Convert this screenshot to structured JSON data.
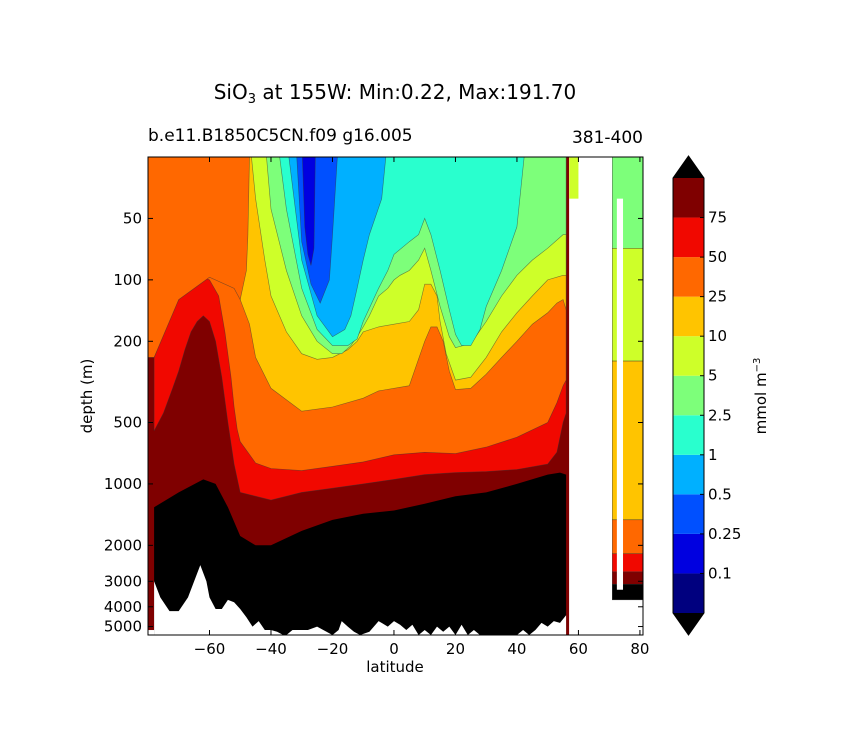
{
  "chart_data": {
    "type": "heatmap",
    "title_prefix": "SiO",
    "title_subscript": "3",
    "title_suffix": " at 155W: Min:0.22, Max:191.70",
    "subtitle_left": "b.e11.B1850C5CN.f09 g16.005",
    "subtitle_right": "381-400",
    "xlabel": "latitude",
    "ylabel": "depth (m)",
    "xlim": [
      -80,
      81
    ],
    "ylim_depth_m": [
      5500,
      25
    ],
    "yscale": "log",
    "x_ticks": [
      "−60",
      "−40",
      "−20",
      "0",
      "20",
      "40",
      "60",
      "80"
    ],
    "x_tick_values": [
      -60,
      -40,
      -20,
      0,
      20,
      40,
      60,
      80
    ],
    "y_ticks": [
      "50",
      "100",
      "200",
      "500",
      "1000",
      "2000",
      "3000",
      "4000",
      "5000"
    ],
    "y_tick_values": [
      50,
      100,
      200,
      500,
      1000,
      2000,
      3000,
      4000,
      5000
    ],
    "colorbar_label": "mmol m",
    "colorbar_label_exp": "−3",
    "colorbar_levels": [
      "0.1",
      "0.25",
      "0.5",
      "1",
      "2.5",
      "5",
      "10",
      "25",
      "50",
      "75"
    ],
    "colorbar_colors": [
      "#00007f",
      "#0000e0",
      "#0050ff",
      "#00b0ff",
      "#29ffce",
      "#7dff7a",
      "#ceff29",
      "#ffc400",
      "#ff6800",
      "#f10800",
      "#7f0000"
    ],
    "extend": "both",
    "land_color": "#000000",
    "series": [
      {
        "name": "contour 75 depth (m)",
        "lat": [
          -78,
          -75,
          -72,
          -70,
          -68,
          -66,
          -64,
          -62,
          -60,
          -58,
          -56,
          -54,
          -52,
          -50,
          -40,
          -30,
          -20,
          -10,
          0,
          10,
          20,
          30,
          40,
          50,
          53,
          55,
          56
        ],
        "depth": [
          550,
          450,
          340,
          280,
          220,
          180,
          160,
          150,
          160,
          200,
          300,
          500,
          800,
          1100,
          1200,
          1100,
          1050,
          1000,
          950,
          900,
          880,
          870,
          850,
          800,
          700,
          500,
          450
        ]
      },
      {
        "name": "contour 50 depth (m)",
        "lat": [
          -78,
          -75,
          -72,
          -70,
          -67,
          -65,
          -62,
          -60,
          -57,
          -55,
          -53,
          -52,
          -51,
          -50,
          -45,
          -40,
          -30,
          -20,
          -10,
          0,
          10,
          20,
          30,
          40,
          50,
          53,
          55,
          56
        ],
        "depth": [
          240,
          180,
          140,
          125,
          110,
          100,
          97,
          100,
          120,
          180,
          300,
          420,
          540,
          620,
          790,
          840,
          860,
          820,
          780,
          720,
          700,
          710,
          660,
          590,
          500,
          400,
          330,
          310
        ]
      },
      {
        "name": "contour 25 depth (m)",
        "lat": [
          -50,
          -47,
          -45,
          -40,
          -30,
          -20,
          -10,
          -5,
          5,
          10,
          12,
          14,
          16,
          18,
          20,
          25,
          30,
          35,
          40,
          45,
          50,
          53,
          55,
          56
        ],
        "depth": [
          125,
          165,
          240,
          340,
          440,
          420,
          380,
          350,
          330,
          200,
          170,
          170,
          200,
          280,
          345,
          340,
          290,
          240,
          200,
          165,
          145,
          130,
          125,
          140
        ]
      },
      {
        "name": "contour 10 depth (m)",
        "lat": [
          -47,
          -45,
          -42,
          -40,
          -35,
          -30,
          -25,
          -20,
          -15,
          -12,
          -10,
          -5,
          0,
          5,
          8,
          10,
          12,
          14,
          15,
          17,
          20,
          25,
          30,
          35,
          40,
          45,
          50,
          55,
          56
        ],
        "depth": [
          20,
          40,
          80,
          120,
          180,
          230,
          245,
          240,
          220,
          200,
          180,
          170,
          165,
          160,
          140,
          105,
          105,
          120,
          160,
          230,
          310,
          300,
          240,
          180,
          145,
          120,
          100,
          95,
          95
        ]
      },
      {
        "name": "contour 5 depth (m)",
        "lat": [
          -42,
          -40,
          -35,
          -30,
          -25,
          -20,
          -17,
          -14,
          -12,
          -10,
          -8,
          -5,
          -2,
          0,
          2,
          5,
          8,
          10,
          12,
          15,
          18,
          20,
          25,
          30,
          35,
          40,
          45,
          50,
          55,
          56
        ],
        "depth": [
          20,
          45,
          90,
          150,
          200,
          230,
          230,
          210,
          190,
          170,
          150,
          120,
          110,
          100,
          95,
          90,
          80,
          70,
          90,
          135,
          190,
          215,
          205,
          160,
          120,
          95,
          80,
          70,
          60,
          60
        ]
      },
      {
        "name": "contour 2.5 depth (m)",
        "lat": [
          -38,
          -35,
          -30,
          -25,
          -20,
          -15,
          -12,
          -10,
          -5,
          -2,
          0,
          5,
          8,
          10,
          12,
          15,
          18,
          20,
          22,
          25,
          28,
          30,
          35,
          40,
          43
        ],
        "depth": [
          20,
          45,
          110,
          175,
          210,
          210,
          195,
          160,
          110,
          90,
          75,
          65,
          60,
          50,
          60,
          90,
          140,
          185,
          210,
          210,
          175,
          135,
          90,
          55,
          20
        ]
      },
      {
        "name": "contour 1 depth (m)",
        "lat": [
          -35,
          -30,
          -25,
          -20,
          -16,
          -14,
          -12,
          -10,
          -8,
          -4,
          -2
        ],
        "depth": [
          20,
          80,
          150,
          190,
          175,
          150,
          110,
          80,
          60,
          40,
          20
        ]
      },
      {
        "name": "contour 0.5 depth (m)",
        "lat": [
          -32,
          -30,
          -27,
          -24,
          -21,
          -20,
          -19,
          -18
        ],
        "depth": [
          20,
          65,
          105,
          130,
          100,
          60,
          35,
          20
        ]
      },
      {
        "name": "contour 0.25 depth (m)",
        "lat": [
          -30,
          -29,
          -28,
          -27,
          -26,
          -25.5
        ],
        "depth": [
          20,
          55,
          75,
          85,
          70,
          20
        ]
      },
      {
        "name": "seafloor depth (m)",
        "lat": [
          -78,
          -76,
          -73,
          -70,
          -67,
          -63,
          -61,
          -60,
          -58,
          -56,
          -54,
          -52,
          -50,
          -48,
          -46,
          -44,
          -42,
          -40,
          -38,
          -36,
          -35,
          -33,
          -30,
          -28,
          -25,
          -20,
          -18,
          -17,
          -15,
          -13,
          -11,
          -8,
          -5,
          -2,
          0,
          2,
          4,
          6,
          8,
          10,
          12,
          14,
          16,
          18,
          20,
          22,
          24,
          26,
          28,
          30,
          32,
          34,
          36,
          38,
          40,
          42,
          44,
          46,
          48,
          50,
          52,
          54,
          56
        ],
        "depth": [
          3000,
          3600,
          4200,
          4200,
          3600,
          2500,
          3000,
          3600,
          4100,
          4100,
          3700,
          3800,
          4100,
          4500,
          5000,
          4700,
          5200,
          5200,
          5300,
          5500,
          5500,
          5200,
          5200,
          5200,
          5000,
          5500,
          5200,
          4700,
          5000,
          5300,
          5500,
          5300,
          4700,
          5000,
          4700,
          4900,
          5200,
          4900,
          5500,
          5200,
          5500,
          5000,
          5300,
          5000,
          5500,
          4900,
          5500,
          5200,
          5500,
          5500,
          5500,
          5500,
          5500,
          5500,
          5500,
          5200,
          5500,
          5200,
          4800,
          5000,
          4700,
          4800,
          4400
        ]
      },
      {
        "name": "arctic column top (lat 68-81)",
        "lat": [
          70,
          72,
          74,
          76,
          78,
          80,
          81
        ],
        "depth": [
          25,
          25,
          25,
          25,
          25,
          25,
          25
        ]
      }
    ]
  }
}
